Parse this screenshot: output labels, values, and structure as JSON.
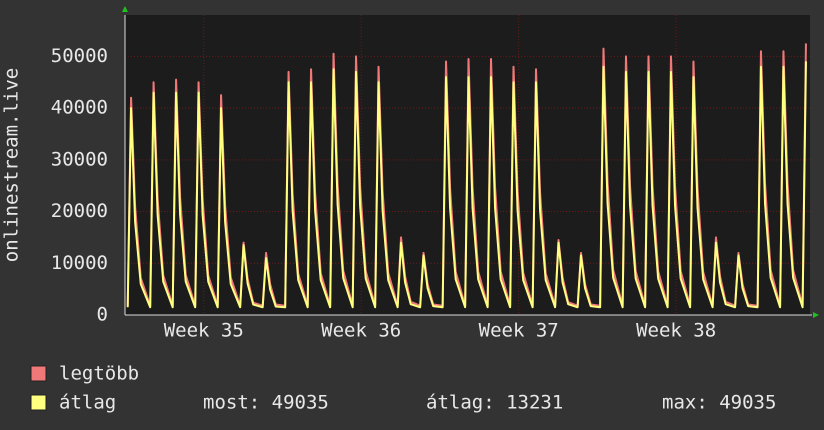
{
  "chart_data": {
    "type": "line",
    "ylabel": "onlinestream.live",
    "x": [
      0.12,
      0.27,
      0.45,
      0.7,
      1.12,
      1.27,
      1.45,
      1.7,
      2.12,
      2.27,
      2.45,
      2.7,
      3.12,
      3.27,
      3.45,
      3.7,
      4.12,
      4.27,
      4.45,
      4.7,
      5.12,
      5.27,
      5.45,
      5.7,
      6.12,
      6.27,
      6.45,
      6.7,
      7.12,
      7.27,
      7.45,
      7.7,
      8.12,
      8.27,
      8.45,
      8.7,
      9.12,
      9.27,
      9.45,
      9.7,
      10.12,
      10.27,
      10.45,
      10.7,
      11.12,
      11.27,
      11.45,
      11.7,
      12.12,
      12.27,
      12.45,
      12.7,
      13.12,
      13.27,
      13.45,
      13.7,
      14.12,
      14.27,
      14.45,
      14.7,
      15.12,
      15.27,
      15.45,
      15.7,
      16.12,
      16.27,
      16.45,
      16.7,
      17.12,
      17.27,
      17.45,
      17.7,
      18.12,
      18.27,
      18.45,
      18.7,
      19.12,
      19.27,
      19.45,
      19.7,
      20.12,
      20.27,
      20.45,
      20.7,
      21.12,
      21.27,
      21.45,
      21.7,
      22.12,
      22.27,
      22.45,
      22.7,
      23.12,
      23.27,
      23.45,
      23.7,
      24.12,
      24.27,
      24.45,
      24.7,
      25.12,
      25.27,
      25.45,
      25.7,
      26.12,
      26.27,
      26.45,
      26.7,
      27.12,
      27.27,
      27.45,
      27.7,
      28.12,
      28.27,
      28.45,
      28.7,
      29.12,
      29.27,
      29.45,
      29.7,
      30.12,
      30.27
    ],
    "series": [
      {
        "name": "legtöbb",
        "color": "#f07878",
        "values": [
          1800,
          42000,
          21000,
          7140,
          1800,
          45000,
          22500,
          7650,
          1800,
          45500,
          22750,
          7735,
          1800,
          45000,
          22500,
          7650,
          1800,
          42500,
          21250,
          7225,
          1800,
          14000,
          7000,
          2380,
          1800,
          12000,
          6000,
          2040,
          1800,
          47000,
          23500,
          7990,
          1800,
          47500,
          23750,
          8075,
          1800,
          50500,
          25250,
          8585,
          1800,
          50000,
          25000,
          8500,
          1800,
          48000,
          24000,
          8160,
          1800,
          15000,
          7500,
          2550,
          1800,
          12000,
          6000,
          2040,
          1800,
          49000,
          24500,
          8330,
          1800,
          49500,
          24750,
          8415,
          1800,
          49500,
          24750,
          8415,
          1800,
          48000,
          24000,
          8160,
          1800,
          47500,
          23750,
          8075,
          1800,
          14500,
          7250,
          2465,
          1800,
          12000,
          6000,
          2040,
          1800,
          51500,
          25750,
          8755,
          1800,
          50000,
          25000,
          8500,
          1800,
          50000,
          25000,
          8500,
          1800,
          50000,
          25000,
          8500,
          1800,
          49000,
          24500,
          8330,
          1800,
          15000,
          7500,
          2550,
          1800,
          12000,
          6000,
          2040,
          1800,
          51000,
          25500,
          8670,
          1800,
          51000,
          25500,
          8670,
          1800,
          52500
        ]
      },
      {
        "name": "átlag",
        "color": "#ffff80",
        "values": [
          1500,
          40000,
          18000,
          6000,
          1500,
          43000,
          19350,
          6450,
          1500,
          43000,
          19350,
          6450,
          1500,
          43000,
          19350,
          6450,
          1500,
          40000,
          18000,
          6000,
          1500,
          13500,
          6075,
          2025,
          1500,
          11000,
          4950,
          1650,
          1500,
          45000,
          20250,
          6750,
          1500,
          45000,
          20250,
          6750,
          1500,
          47500,
          21375,
          7125,
          1500,
          47000,
          21150,
          7050,
          1500,
          45000,
          20250,
          6750,
          1500,
          14000,
          6300,
          2100,
          1500,
          11500,
          5175,
          1725,
          1500,
          46000,
          20700,
          6900,
          1500,
          46000,
          20700,
          6900,
          1500,
          46000,
          20700,
          6900,
          1500,
          45000,
          20250,
          6750,
          1500,
          45000,
          20250,
          6750,
          1500,
          14000,
          6300,
          2100,
          1500,
          11500,
          5175,
          1725,
          1500,
          48000,
          21600,
          7200,
          1500,
          47000,
          21150,
          7050,
          1500,
          47000,
          21150,
          7050,
          1500,
          47000,
          21150,
          7050,
          1500,
          46000,
          20700,
          6900,
          1500,
          14000,
          6300,
          2100,
          1500,
          11500,
          5175,
          1725,
          1500,
          48000,
          21600,
          7200,
          1500,
          48000,
          21600,
          7200,
          1500,
          49035
        ]
      }
    ],
    "xlim": [
      0,
      30.45
    ],
    "xticks": [
      {
        "value": 3.5,
        "label": "Week 35"
      },
      {
        "value": 10.5,
        "label": "Week 36"
      },
      {
        "value": 17.5,
        "label": "Week 37"
      },
      {
        "value": 24.5,
        "label": "Week 38"
      }
    ],
    "ylim": [
      0,
      58000
    ],
    "yticks": [
      0,
      10000,
      20000,
      30000,
      40000,
      50000
    ],
    "grid": true,
    "stats": [
      "most: 49035",
      "átlag: 13231",
      "max: 49035"
    ]
  }
}
